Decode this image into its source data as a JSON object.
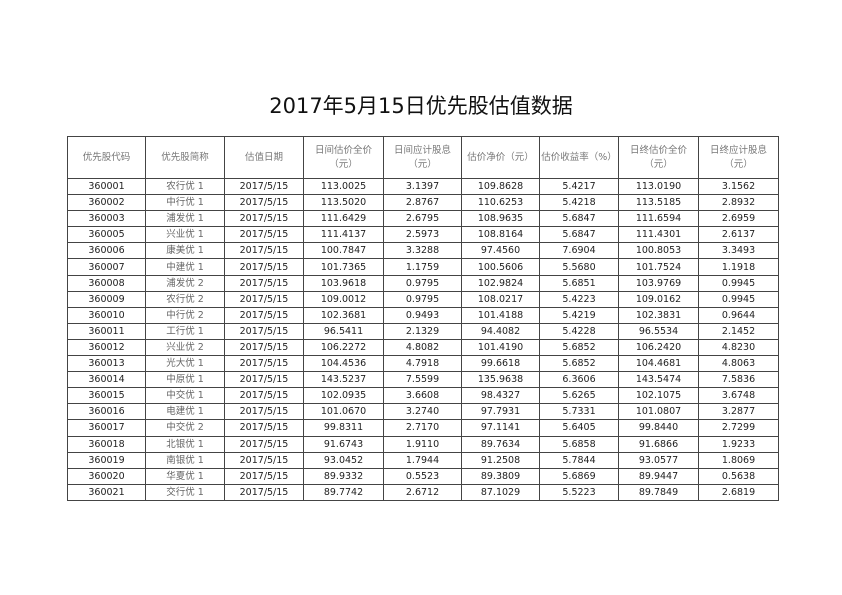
{
  "title": "2017年5月15日优先股估值数据",
  "headers": [
    "优先股代码",
    "优先股简称",
    "估值日期",
    "日间估价全价（元）",
    "日间应计股息（元）",
    "估价净价（元）",
    "估价收益率（%）",
    "日终估价全价（元）",
    "日终应计股息（元）"
  ],
  "rows": [
    [
      "360001",
      "农行优 1",
      "2017/5/15",
      "113.0025",
      "3.1397",
      "109.8628",
      "5.4217",
      "113.0190",
      "3.1562"
    ],
    [
      "360002",
      "中行优 1",
      "2017/5/15",
      "113.5020",
      "2.8767",
      "110.6253",
      "5.4218",
      "113.5185",
      "2.8932"
    ],
    [
      "360003",
      "浦发优 1",
      "2017/5/15",
      "111.6429",
      "2.6795",
      "108.9635",
      "5.6847",
      "111.6594",
      "2.6959"
    ],
    [
      "360005",
      "兴业优 1",
      "2017/5/15",
      "111.4137",
      "2.5973",
      "108.8164",
      "5.6847",
      "111.4301",
      "2.6137"
    ],
    [
      "360006",
      "康美优 1",
      "2017/5/15",
      "100.7847",
      "3.3288",
      "97.4560",
      "7.6904",
      "100.8053",
      "3.3493"
    ],
    [
      "360007",
      "中建优 1",
      "2017/5/15",
      "101.7365",
      "1.1759",
      "100.5606",
      "5.5680",
      "101.7524",
      "1.1918"
    ],
    [
      "360008",
      "浦发优 2",
      "2017/5/15",
      "103.9618",
      "0.9795",
      "102.9824",
      "5.6851",
      "103.9769",
      "0.9945"
    ],
    [
      "360009",
      "农行优 2",
      "2017/5/15",
      "109.0012",
      "0.9795",
      "108.0217",
      "5.4223",
      "109.0162",
      "0.9945"
    ],
    [
      "360010",
      "中行优 2",
      "2017/5/15",
      "102.3681",
      "0.9493",
      "101.4188",
      "5.4219",
      "102.3831",
      "0.9644"
    ],
    [
      "360011",
      "工行优 1",
      "2017/5/15",
      "96.5411",
      "2.1329",
      "94.4082",
      "5.4228",
      "96.5534",
      "2.1452"
    ],
    [
      "360012",
      "兴业优 2",
      "2017/5/15",
      "106.2272",
      "4.8082",
      "101.4190",
      "5.6852",
      "106.2420",
      "4.8230"
    ],
    [
      "360013",
      "光大优 1",
      "2017/5/15",
      "104.4536",
      "4.7918",
      "99.6618",
      "5.6852",
      "104.4681",
      "4.8063"
    ],
    [
      "360014",
      "中原优 1",
      "2017/5/15",
      "143.5237",
      "7.5599",
      "135.9638",
      "6.3606",
      "143.5474",
      "7.5836"
    ],
    [
      "360015",
      "中交优 1",
      "2017/5/15",
      "102.0935",
      "3.6608",
      "98.4327",
      "5.6265",
      "102.1075",
      "3.6748"
    ],
    [
      "360016",
      "电建优 1",
      "2017/5/15",
      "101.0670",
      "3.2740",
      "97.7931",
      "5.7331",
      "101.0807",
      "3.2877"
    ],
    [
      "360017",
      "中交优 2",
      "2017/5/15",
      "99.8311",
      "2.7170",
      "97.1141",
      "5.6405",
      "99.8440",
      "2.7299"
    ],
    [
      "360018",
      "北银优 1",
      "2017/5/15",
      "91.6743",
      "1.9110",
      "89.7634",
      "5.6858",
      "91.6866",
      "1.9233"
    ],
    [
      "360019",
      "南银优 1",
      "2017/5/15",
      "93.0452",
      "1.7944",
      "91.2508",
      "5.7844",
      "93.0577",
      "1.8069"
    ],
    [
      "360020",
      "华夏优 1",
      "2017/5/15",
      "89.9332",
      "0.5523",
      "89.3809",
      "5.6869",
      "89.9447",
      "0.5638"
    ],
    [
      "360021",
      "交行优 1",
      "2017/5/15",
      "89.7742",
      "2.6712",
      "87.1029",
      "5.5223",
      "89.7849",
      "2.6819"
    ]
  ]
}
